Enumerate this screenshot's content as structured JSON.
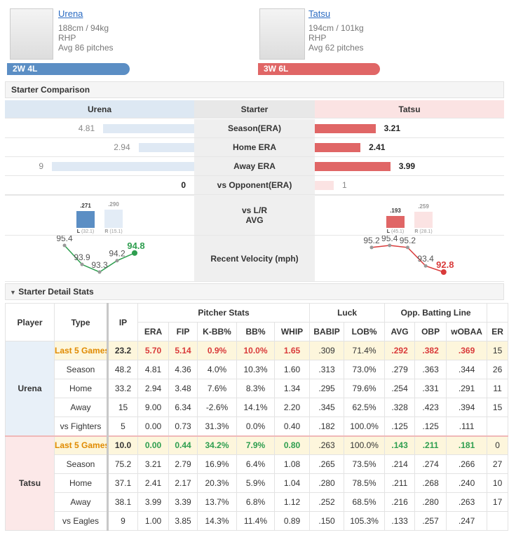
{
  "players": [
    {
      "name": "Urena",
      "body": "188cm / 94kg",
      "throws": "RHP",
      "pitches": "Avg 86 pitches",
      "record": "2W 4L"
    },
    {
      "name": "Tatsu",
      "body": "194cm / 101kg",
      "throws": "RHP",
      "pitches": "Avg 62 pitches",
      "record": "3W 6L"
    }
  ],
  "comparison": {
    "title": "Starter Comparison",
    "header": [
      "Urena",
      "Starter",
      "Tatsu"
    ],
    "rows": [
      {
        "label": "Season(ERA)",
        "left": 4.81,
        "right": 3.21
      },
      {
        "label": "Home ERA",
        "left": 2.94,
        "right": 2.41
      },
      {
        "label": "Away ERA",
        "left": 9,
        "right": 3.99
      },
      {
        "label": "vs Opponent(ERA)",
        "left": 0,
        "right": 1
      }
    ],
    "split": {
      "label": [
        "vs L/R",
        "AVG"
      ],
      "left": [
        {
          "hand": "L",
          "value": 0.271,
          "label": ".271",
          "sample": "(32.1)"
        },
        {
          "hand": "R",
          "value": 0.29,
          "label": ".290",
          "sample": "(15.1)"
        }
      ],
      "right": [
        {
          "hand": "L",
          "value": 0.193,
          "label": ".193",
          "sample": "(45.1)"
        },
        {
          "hand": "R",
          "value": 0.259,
          "label": ".259",
          "sample": "(28.1)"
        }
      ]
    },
    "velocity": {
      "label": "Recent Velocity (mph)",
      "left": [
        95.4,
        93.9,
        93.3,
        94.2,
        94.8
      ],
      "left_color": "#2e9e4f",
      "right": [
        95.2,
        95.4,
        95.2,
        93.4,
        92.8
      ],
      "right_color": "#d93a3a"
    }
  },
  "detail": {
    "title": "Starter Detail Stats",
    "fixed_headers": [
      "Player",
      "Type",
      "IP"
    ],
    "groups": [
      {
        "label": "Pitcher Stats",
        "columns": [
          "ERA",
          "FIP",
          "K-BB%",
          "BB%",
          "WHIP"
        ]
      },
      {
        "label": "Luck",
        "columns": [
          "BABIP",
          "LOB%"
        ]
      },
      {
        "label": "Opp. Batting Line",
        "columns": [
          "AVG",
          "OBP",
          "wOBAA"
        ]
      },
      {
        "columns": [
          "ER"
        ]
      }
    ],
    "players": [
      {
        "player": "Urena",
        "highlight_color": "#d93a3a",
        "rows": [
          {
            "type": "Last 5 Games",
            "cells": [
              "23.2",
              "5.70",
              "5.14",
              "0.9%",
              "10.0%",
              "1.65",
              ".309",
              "71.4%",
              ".292",
              ".382",
              ".369",
              "15"
            ]
          },
          {
            "type": "Season",
            "cells": [
              "48.2",
              "4.81",
              "4.36",
              "4.0%",
              "10.3%",
              "1.60",
              ".313",
              "73.0%",
              ".279",
              ".363",
              ".344",
              "26"
            ]
          },
          {
            "type": "Home",
            "cells": [
              "33.2",
              "2.94",
              "3.48",
              "7.6%",
              "8.3%",
              "1.34",
              ".295",
              "79.6%",
              ".254",
              ".331",
              ".291",
              "11"
            ]
          },
          {
            "type": "Away",
            "cells": [
              "15",
              "9.00",
              "6.34",
              "-2.6%",
              "14.1%",
              "2.20",
              ".345",
              "62.5%",
              ".328",
              ".423",
              ".394",
              "15"
            ]
          },
          {
            "type": "vs Fighters",
            "cells": [
              "5",
              "0.00",
              "0.73",
              "31.3%",
              "0.0%",
              "0.40",
              ".182",
              "100.0%",
              ".125",
              ".125",
              ".111",
              null
            ]
          }
        ]
      },
      {
        "player": "Tatsu",
        "highlight_color": "#2e9e4f",
        "rows": [
          {
            "type": "Last 5 Games",
            "cells": [
              "10.0",
              "0.00",
              "0.44",
              "34.2%",
              "7.9%",
              "0.80",
              ".263",
              "100.0%",
              ".143",
              ".211",
              ".181",
              "0"
            ]
          },
          {
            "type": "Season",
            "cells": [
              "75.2",
              "3.21",
              "2.79",
              "16.9%",
              "6.4%",
              "1.08",
              ".265",
              "73.5%",
              ".214",
              ".274",
              ".266",
              "27"
            ]
          },
          {
            "type": "Home",
            "cells": [
              "37.1",
              "2.41",
              "2.17",
              "20.3%",
              "5.9%",
              "1.04",
              ".280",
              "78.5%",
              ".211",
              ".268",
              ".240",
              "10"
            ]
          },
          {
            "type": "Away",
            "cells": [
              "38.1",
              "3.99",
              "3.39",
              "13.7%",
              "6.8%",
              "1.12",
              ".252",
              "68.5%",
              ".216",
              ".280",
              ".263",
              "17"
            ]
          },
          {
            "type": "vs Eagles",
            "cells": [
              "9",
              "1.00",
              "3.85",
              "14.3%",
              "11.4%",
              "0.89",
              ".150",
              "105.3%",
              ".133",
              ".257",
              ".247",
              null
            ]
          }
        ]
      }
    ]
  }
}
